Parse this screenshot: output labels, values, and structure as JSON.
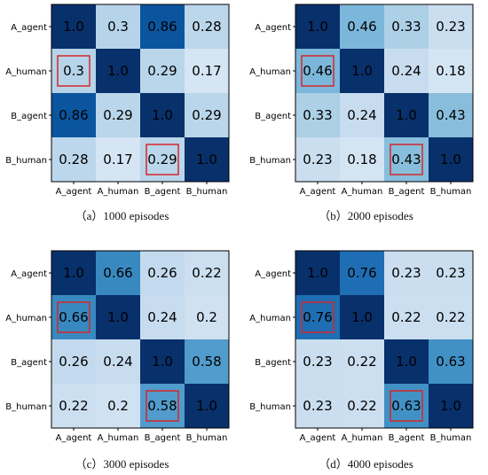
{
  "chart_data": [
    {
      "type": "heatmap",
      "caption": "（a）1000 episodes",
      "categories": [
        "A_agent",
        "A_human",
        "B_agent",
        "B_human"
      ],
      "values": [
        [
          1.0,
          0.3,
          0.86,
          0.28
        ],
        [
          0.3,
          1.0,
          0.29,
          0.17
        ],
        [
          0.86,
          0.29,
          1.0,
          0.29
        ],
        [
          0.28,
          0.17,
          0.29,
          1.0
        ]
      ],
      "value_labels": [
        [
          "1.0",
          "0.3",
          "0.86",
          "0.28"
        ],
        [
          "0.3",
          "1.0",
          "0.29",
          "0.17"
        ],
        [
          "0.86",
          "0.29",
          "1.0",
          "0.29"
        ],
        [
          "0.28",
          "0.17",
          "0.29",
          "1.0"
        ]
      ],
      "highlighted_cells": [
        [
          1,
          0
        ],
        [
          3,
          2
        ]
      ]
    },
    {
      "type": "heatmap",
      "caption": "（b）2000 episodes",
      "categories": [
        "A_agent",
        "A_human",
        "B_agent",
        "B_human"
      ],
      "values": [
        [
          1.0,
          0.46,
          0.33,
          0.23
        ],
        [
          0.46,
          1.0,
          0.24,
          0.18
        ],
        [
          0.33,
          0.24,
          1.0,
          0.43
        ],
        [
          0.23,
          0.18,
          0.43,
          1.0
        ]
      ],
      "value_labels": [
        [
          "1.0",
          "0.46",
          "0.33",
          "0.23"
        ],
        [
          "0.46",
          "1.0",
          "0.24",
          "0.18"
        ],
        [
          "0.33",
          "0.24",
          "1.0",
          "0.43"
        ],
        [
          "0.23",
          "0.18",
          "0.43",
          "1.0"
        ]
      ],
      "highlighted_cells": [
        [
          1,
          0
        ],
        [
          3,
          2
        ]
      ]
    },
    {
      "type": "heatmap",
      "caption": "（c）3000 episodes",
      "categories": [
        "A_agent",
        "A_human",
        "B_agent",
        "B_human"
      ],
      "values": [
        [
          1.0,
          0.66,
          0.26,
          0.22
        ],
        [
          0.66,
          1.0,
          0.24,
          0.2
        ],
        [
          0.26,
          0.24,
          1.0,
          0.58
        ],
        [
          0.22,
          0.2,
          0.58,
          1.0
        ]
      ],
      "value_labels": [
        [
          "1.0",
          "0.66",
          "0.26",
          "0.22"
        ],
        [
          "0.66",
          "1.0",
          "0.24",
          "0.2"
        ],
        [
          "0.26",
          "0.24",
          "1.0",
          "0.58"
        ],
        [
          "0.22",
          "0.2",
          "0.58",
          "1.0"
        ]
      ],
      "highlighted_cells": [
        [
          1,
          0
        ],
        [
          3,
          2
        ]
      ]
    },
    {
      "type": "heatmap",
      "caption": "（d）4000 episodes",
      "categories": [
        "A_agent",
        "A_human",
        "B_agent",
        "B_human"
      ],
      "values": [
        [
          1.0,
          0.76,
          0.23,
          0.23
        ],
        [
          0.76,
          1.0,
          0.22,
          0.22
        ],
        [
          0.23,
          0.22,
          1.0,
          0.63
        ],
        [
          0.23,
          0.22,
          0.63,
          1.0
        ]
      ],
      "value_labels": [
        [
          "1.0",
          "0.76",
          "0.23",
          "0.23"
        ],
        [
          "0.76",
          "1.0",
          "0.22",
          "0.22"
        ],
        [
          "0.23",
          "0.22",
          "1.0",
          "0.63"
        ],
        [
          "0.23",
          "0.22",
          "0.63",
          "1.0"
        ]
      ],
      "highlighted_cells": [
        [
          1,
          0
        ],
        [
          3,
          2
        ]
      ]
    }
  ],
  "colors": {
    "colormap": "Blues",
    "highlight": "#d62728",
    "text_dark": "#000000"
  }
}
